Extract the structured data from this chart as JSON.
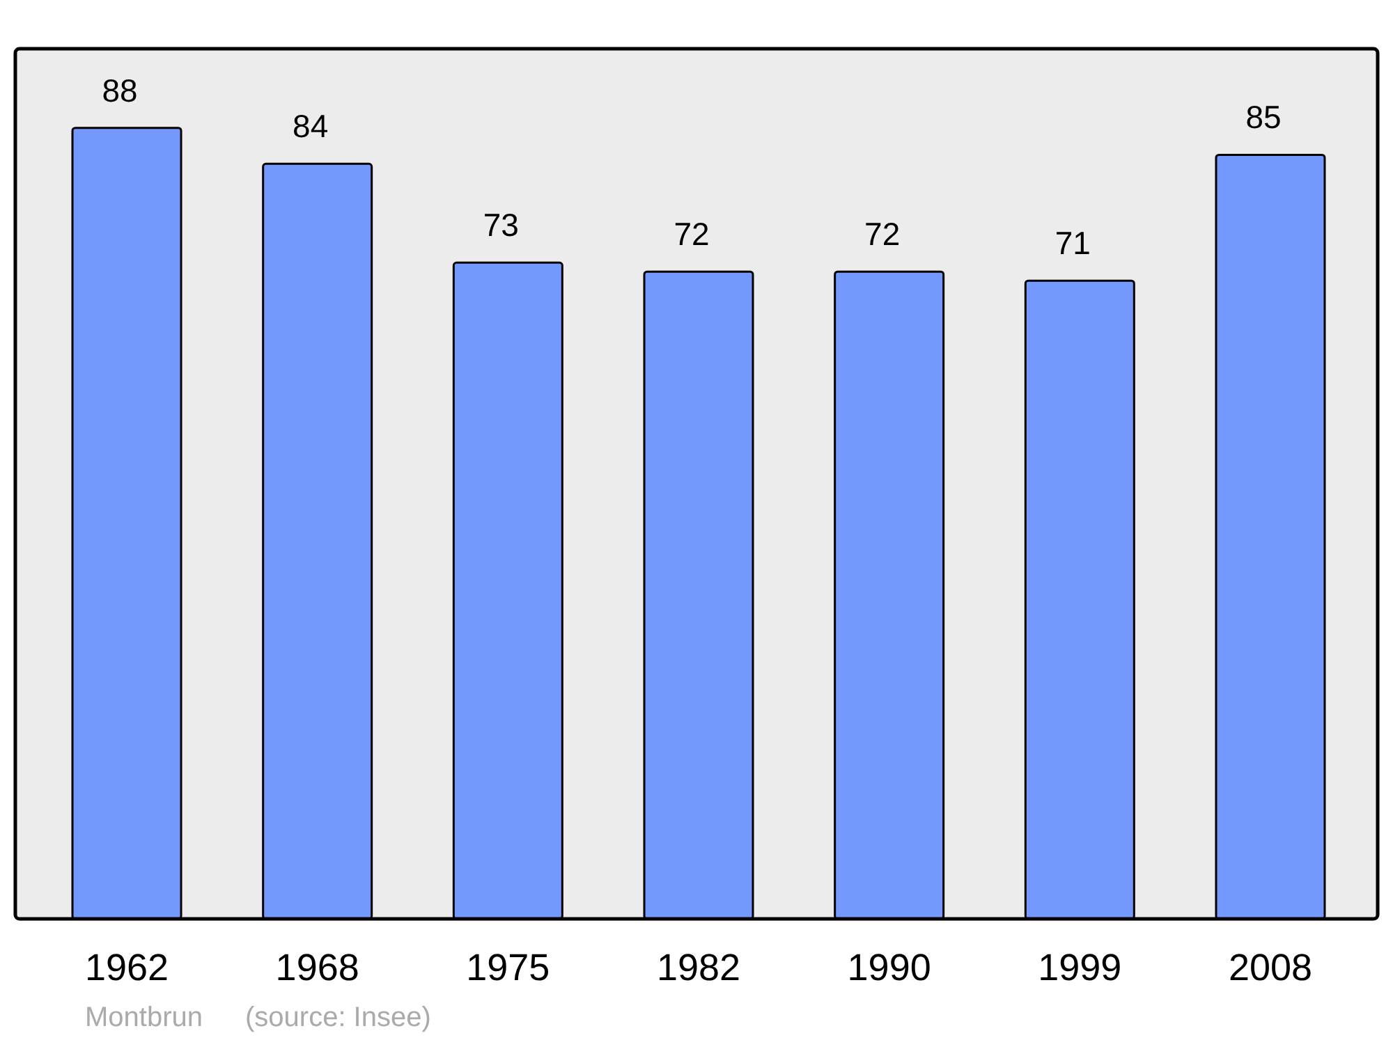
{
  "chart_data": {
    "type": "bar",
    "data_labels": true,
    "categories": [
      "1962",
      "1968",
      "1975",
      "1982",
      "1990",
      "1999",
      "2008"
    ],
    "values": [
      88,
      84,
      73,
      72,
      72,
      71,
      85
    ],
    "color": "#7399ff",
    "annotations": [
      "Montbrun",
      "(source: Insee)"
    ]
  }
}
